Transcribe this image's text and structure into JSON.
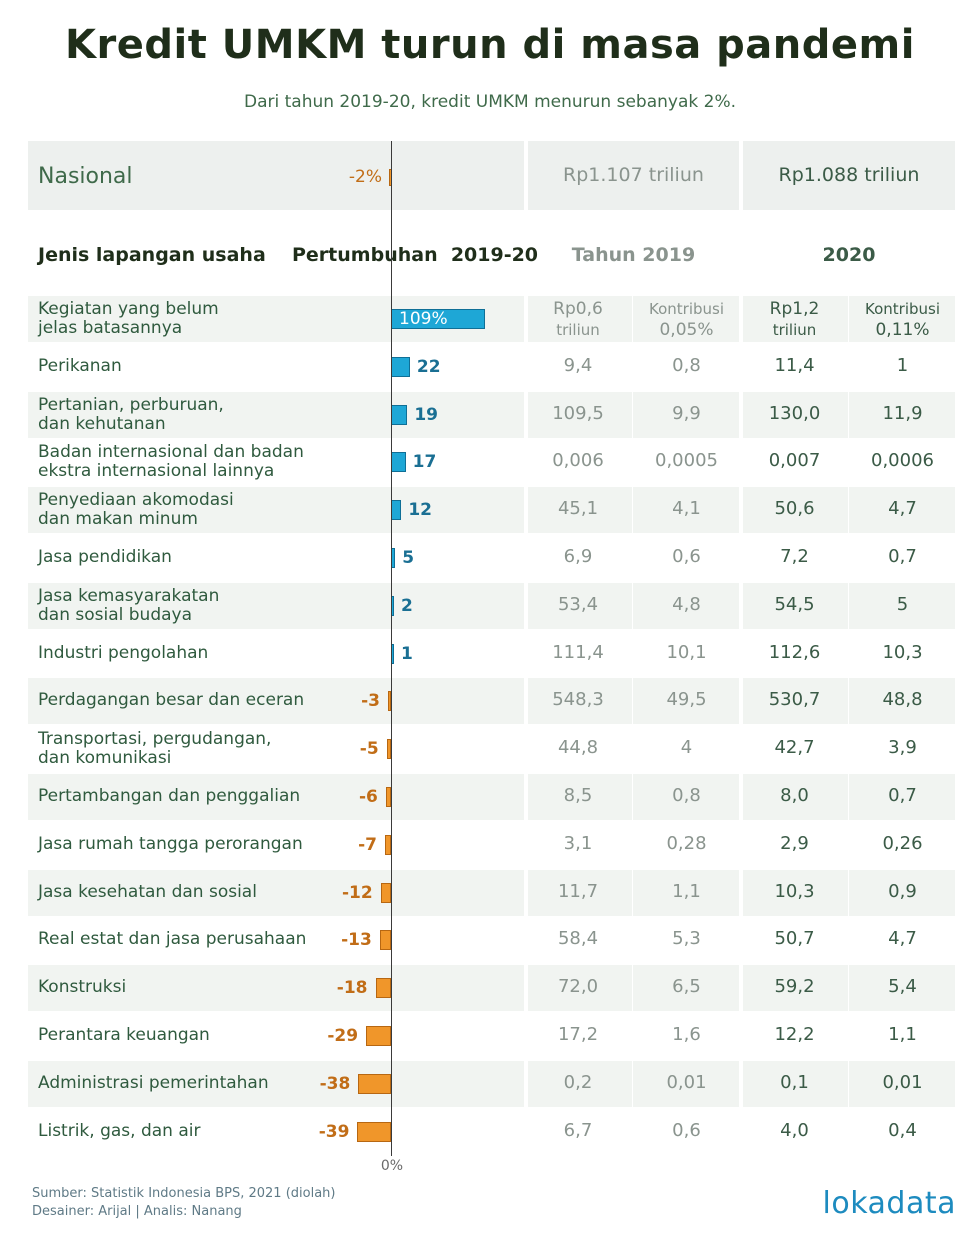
{
  "header": {
    "title": "Kredit UMKM turun di masa pandemi",
    "subtitle": "Dari tahun 2019-20, kredit UMKM menurun sebanyak 2%."
  },
  "national": {
    "label": "Nasional",
    "growth_label": "-2%",
    "growth": -2,
    "total_2019": "Rp1.107 triliun",
    "total_2020": "Rp1.088 triliun"
  },
  "columns": {
    "sector": "Jenis lapangan usaha",
    "growth": "Pertumbuhan  2019-20",
    "year_2019": "Tahun 2019",
    "year_2020": "2020"
  },
  "axis": {
    "zero_label": "0%"
  },
  "first_row": {
    "v2019_line1": "Rp0,6",
    "v2019_line2": "triliun",
    "c2019_line1": "Kontribusi",
    "c2019_line2": "0,05%",
    "v2020_line1": "Rp1,2",
    "v2020_line2": "triliun",
    "c2020_line1": "Kontribusi",
    "c2020_line2": "0,11%"
  },
  "chart_data": {
    "type": "bar",
    "orientation": "horizontal",
    "title": "Kredit UMKM turun di masa pandemi",
    "value_unit": "%",
    "colors": {
      "positive": "#1ea7d6",
      "negative": "#f0962a",
      "positive_text": "#1a6f93",
      "negative_text": "#c16d17"
    },
    "categories": [
      [
        "Kegiatan yang belum",
        "jelas batasannya"
      ],
      [
        "Perikanan"
      ],
      [
        "Pertanian, perburuan,",
        "dan kehutanan"
      ],
      [
        "Badan internasional dan badan",
        "ekstra internasional lainnya"
      ],
      [
        "Penyediaan akomodasi",
        "dan makan minum"
      ],
      [
        "Jasa pendidikan"
      ],
      [
        "Jasa kemasyarakatan",
        "dan sosial budaya"
      ],
      [
        "Industri pengolahan"
      ],
      [
        "Perdagangan besar dan eceran"
      ],
      [
        "Transportasi, pergudangan,",
        "dan komunikasi"
      ],
      [
        "Pertambangan dan penggalian"
      ],
      [
        "Jasa rumah tangga perorangan"
      ],
      [
        "Jasa kesehatan dan sosial"
      ],
      [
        "Real estat dan jasa perusahaan"
      ],
      [
        "Konstruksi"
      ],
      [
        "Perantara keuangan"
      ],
      [
        "Administrasi pemerintahan"
      ],
      [
        "Listrik, gas, dan air"
      ]
    ],
    "values": [
      109,
      22,
      19,
      17,
      12,
      5,
      2,
      1,
      -3,
      -5,
      -6,
      -7,
      -12,
      -13,
      -18,
      -29,
      -38,
      -39
    ],
    "value_labels": [
      "109%",
      "22",
      "19",
      "17",
      "12",
      "5",
      "2",
      "1",
      "-3",
      "-5",
      "-6",
      "-7",
      "-12",
      "-13",
      "-18",
      "-29",
      "-38",
      "-39"
    ],
    "table": {
      "credit_2019": [
        null,
        "9,4",
        "109,5",
        "0,006",
        "45,1",
        "6,9",
        "53,4",
        "111,4",
        "548,3",
        "44,8",
        "8,5",
        "3,1",
        "11,7",
        "58,4",
        "72,0",
        "17,2",
        "0,2",
        "6,7"
      ],
      "contribution_2019": [
        null,
        "0,8",
        "9,9",
        "0,0005",
        "4,1",
        "0,6",
        "4,8",
        "10,1",
        "49,5",
        "4",
        "0,8",
        "0,28",
        "1,1",
        "5,3",
        "6,5",
        "1,6",
        "0,01",
        "0,6"
      ],
      "credit_2020": [
        null,
        "11,4",
        "130,0",
        "0,007",
        "50,6",
        "7,2",
        "54,5",
        "112,6",
        "530,7",
        "42,7",
        "8,0",
        "2,9",
        "10,3",
        "50,7",
        "59,2",
        "12,2",
        "0,1",
        "4,0"
      ],
      "contribution_2020": [
        null,
        "1",
        "11,9",
        "0,0006",
        "4,7",
        "0,7",
        "5",
        "10,3",
        "48,8",
        "3,9",
        "0,7",
        "0,26",
        "0,9",
        "4,7",
        "5,4",
        "1,1",
        "0,01",
        "0,4"
      ]
    }
  },
  "footer": {
    "source": "Sumber: Statistik Indonesia BPS, 2021 (diolah)",
    "credits": "Desainer: Arijal | Analis: Nanang",
    "logo": "lokadata"
  }
}
